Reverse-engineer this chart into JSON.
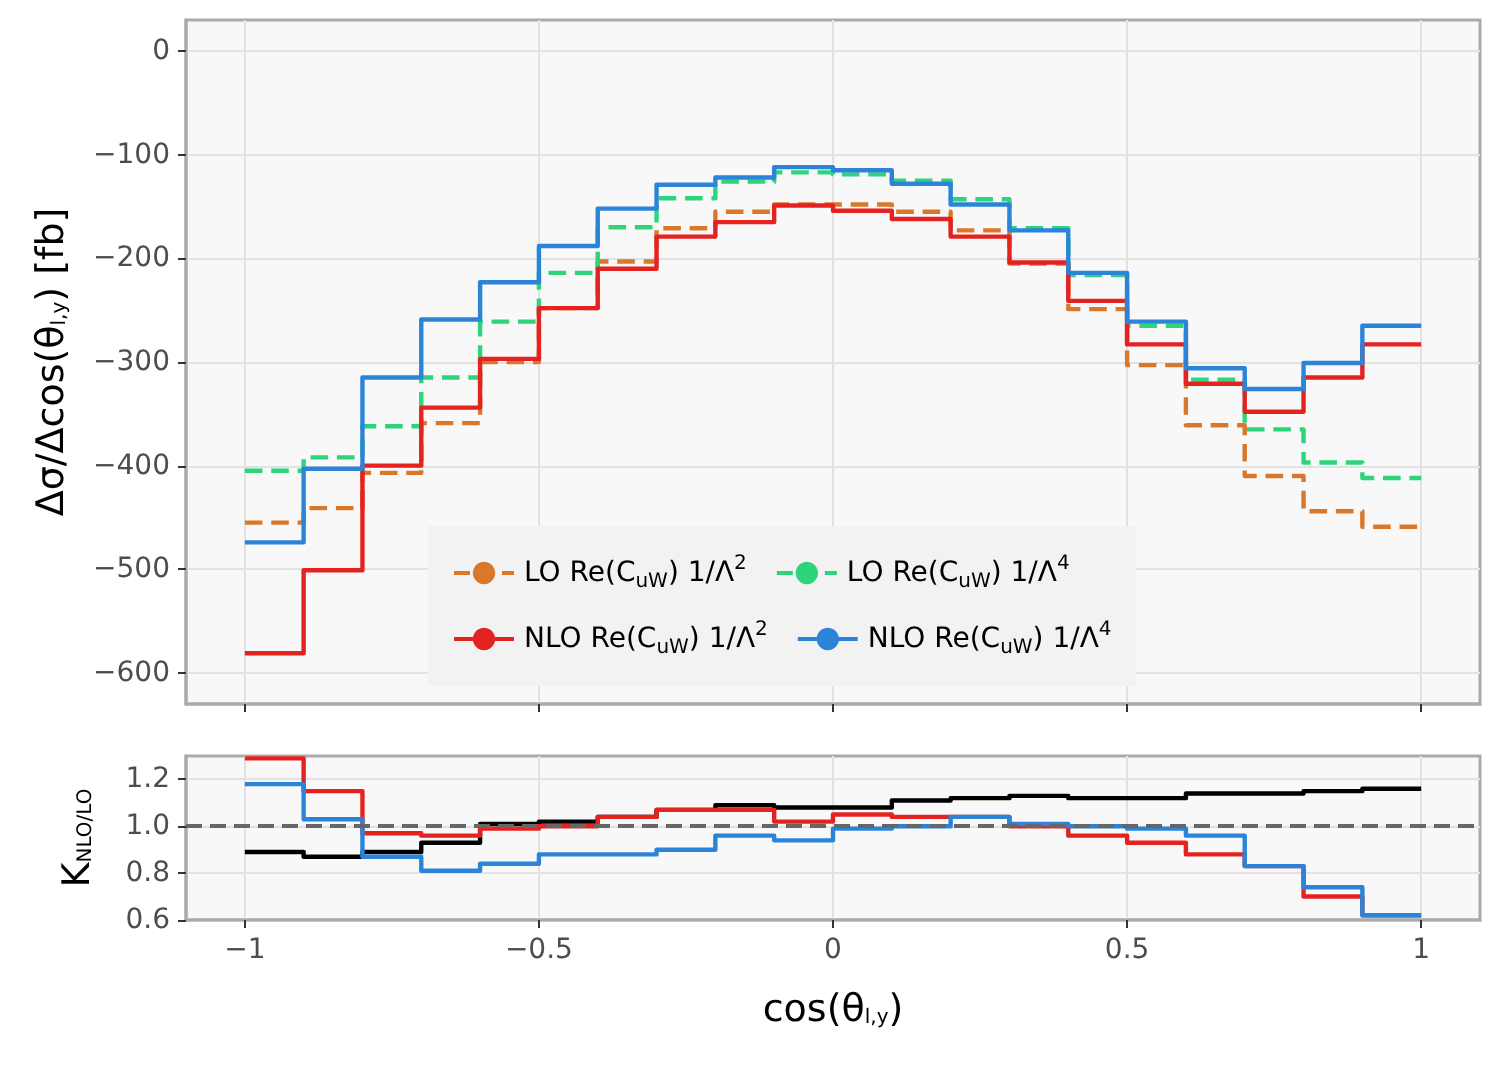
{
  "chart_data": [
    {
      "type": "histogram",
      "ylabel": "Δσ/Δcos(θ$_{l,y}$) [fb]",
      "bins": [
        -1,
        -0.9,
        -0.8,
        -0.7,
        -0.6,
        -0.5,
        -0.4,
        -0.3,
        -0.2,
        -0.1,
        0,
        0.1,
        0.2,
        0.3,
        0.4,
        0.5,
        0.6,
        0.7,
        0.8,
        0.9,
        1
      ],
      "series": [
        {
          "name": "LO Re(C$_{uW}$) 1/Λ$^{2}$",
          "color": "#d9782a",
          "line_style": "dashed",
          "values": [
            -455,
            -441,
            -407,
            -359,
            -300,
            -248,
            -203,
            -171,
            -155,
            -148,
            -148,
            -155,
            -173,
            -205,
            -249,
            -303,
            -361,
            -410,
            -444,
            -459
          ]
        },
        {
          "name": "LO Re(C$_{uW}$) 1/Λ$^{4}$",
          "color": "#2ed47a",
          "line_style": "dashed",
          "values": [
            -405,
            -392,
            -362,
            -315,
            -261,
            -214,
            -170,
            -142,
            -126,
            -117,
            -119,
            -125,
            -143,
            -171,
            -216,
            -265,
            -317,
            -365,
            -397,
            -412
          ]
        },
        {
          "name": "NLO Re(C$_{uW}$) 1/Λ$^{2}$",
          "color": "#e42320",
          "line_style": "solid",
          "values": [
            -581,
            -501,
            -400,
            -344,
            -297,
            -248,
            -210,
            -179,
            -165,
            -149,
            -154,
            -162,
            -179,
            -204,
            -241,
            -283,
            -321,
            -348,
            -315,
            -283
          ]
        },
        {
          "name": "NLO Re(C$_{uW}$) 1/Λ$^{4}$",
          "color": "#2b84d8",
          "line_style": "solid",
          "values": [
            -474,
            -403,
            -315,
            -259,
            -223,
            -188,
            -152,
            -129,
            -122,
            -112,
            -115,
            -128,
            -148,
            -173,
            -214,
            -261,
            -306,
            -326,
            -301,
            -265
          ]
        }
      ],
      "xlim": [
        -1.1,
        1.1
      ],
      "xticks": [
        -1,
        -0.5,
        0,
        0.5,
        1
      ],
      "ylim": [
        -630,
        30
      ],
      "yticks": [
        {
          "value": -600,
          "label": "−600"
        },
        {
          "value": -500,
          "label": "−500"
        },
        {
          "value": -400,
          "label": "−400"
        },
        {
          "value": -300,
          "label": "−300"
        },
        {
          "value": -200,
          "label": "−200"
        },
        {
          "value": -100,
          "label": "−100"
        },
        0
      ],
      "grid": true,
      "legend": "bottom",
      "tick_labels": "y"
    },
    {
      "type": "histogram",
      "xlabel": "cos(θ$_{l,y}$)",
      "ylabel": "K$_{NLO/LO}$",
      "bins": [
        -1,
        -0.9,
        -0.8,
        -0.7,
        -0.6,
        -0.5,
        -0.4,
        -0.3,
        -0.2,
        -0.1,
        0,
        0.1,
        0.2,
        0.3,
        0.4,
        0.5,
        0.6,
        0.7,
        0.8,
        0.9,
        1
      ],
      "series": [
        {
          "color": "#000000",
          "line_style": "solid",
          "values": [
            0.89,
            0.87,
            0.89,
            0.93,
            1.01,
            1.02,
            1.04,
            1.07,
            1.09,
            1.08,
            1.08,
            1.11,
            1.12,
            1.13,
            1.12,
            1.12,
            1.14,
            1.14,
            1.15,
            1.16
          ]
        },
        {
          "color": "#e42320",
          "line_style": "solid",
          "values": [
            1.29,
            1.15,
            0.97,
            0.96,
            0.99,
            1.0,
            1.04,
            1.07,
            1.07,
            1.02,
            1.05,
            1.04,
            1.04,
            1.0,
            0.96,
            0.93,
            0.88,
            0.83,
            0.7,
            0.62
          ]
        },
        {
          "color": "#2b84d8",
          "line_style": "solid",
          "values": [
            1.18,
            1.03,
            0.87,
            0.81,
            0.84,
            0.88,
            0.88,
            0.9,
            0.96,
            0.94,
            0.99,
            1.0,
            1.04,
            1.01,
            1.0,
            0.99,
            0.96,
            0.83,
            0.74,
            0.62
          ]
        }
      ],
      "xlim": [
        -1.1,
        1.1
      ],
      "xticks": [
        {
          "value": -1,
          "label": "−1"
        },
        {
          "value": -0.5,
          "label": "−0.5"
        },
        0,
        0.5,
        1
      ],
      "ylim": [
        0.6,
        1.3
      ],
      "yticks": [
        0.6,
        0.8,
        {
          "value": 1,
          "label": "1.0"
        },
        1.2
      ],
      "ref_lines": [
        {
          "axis": "y",
          "value": 1,
          "color": "#666666",
          "line_style": "dashed"
        }
      ],
      "grid": true
    }
  ]
}
